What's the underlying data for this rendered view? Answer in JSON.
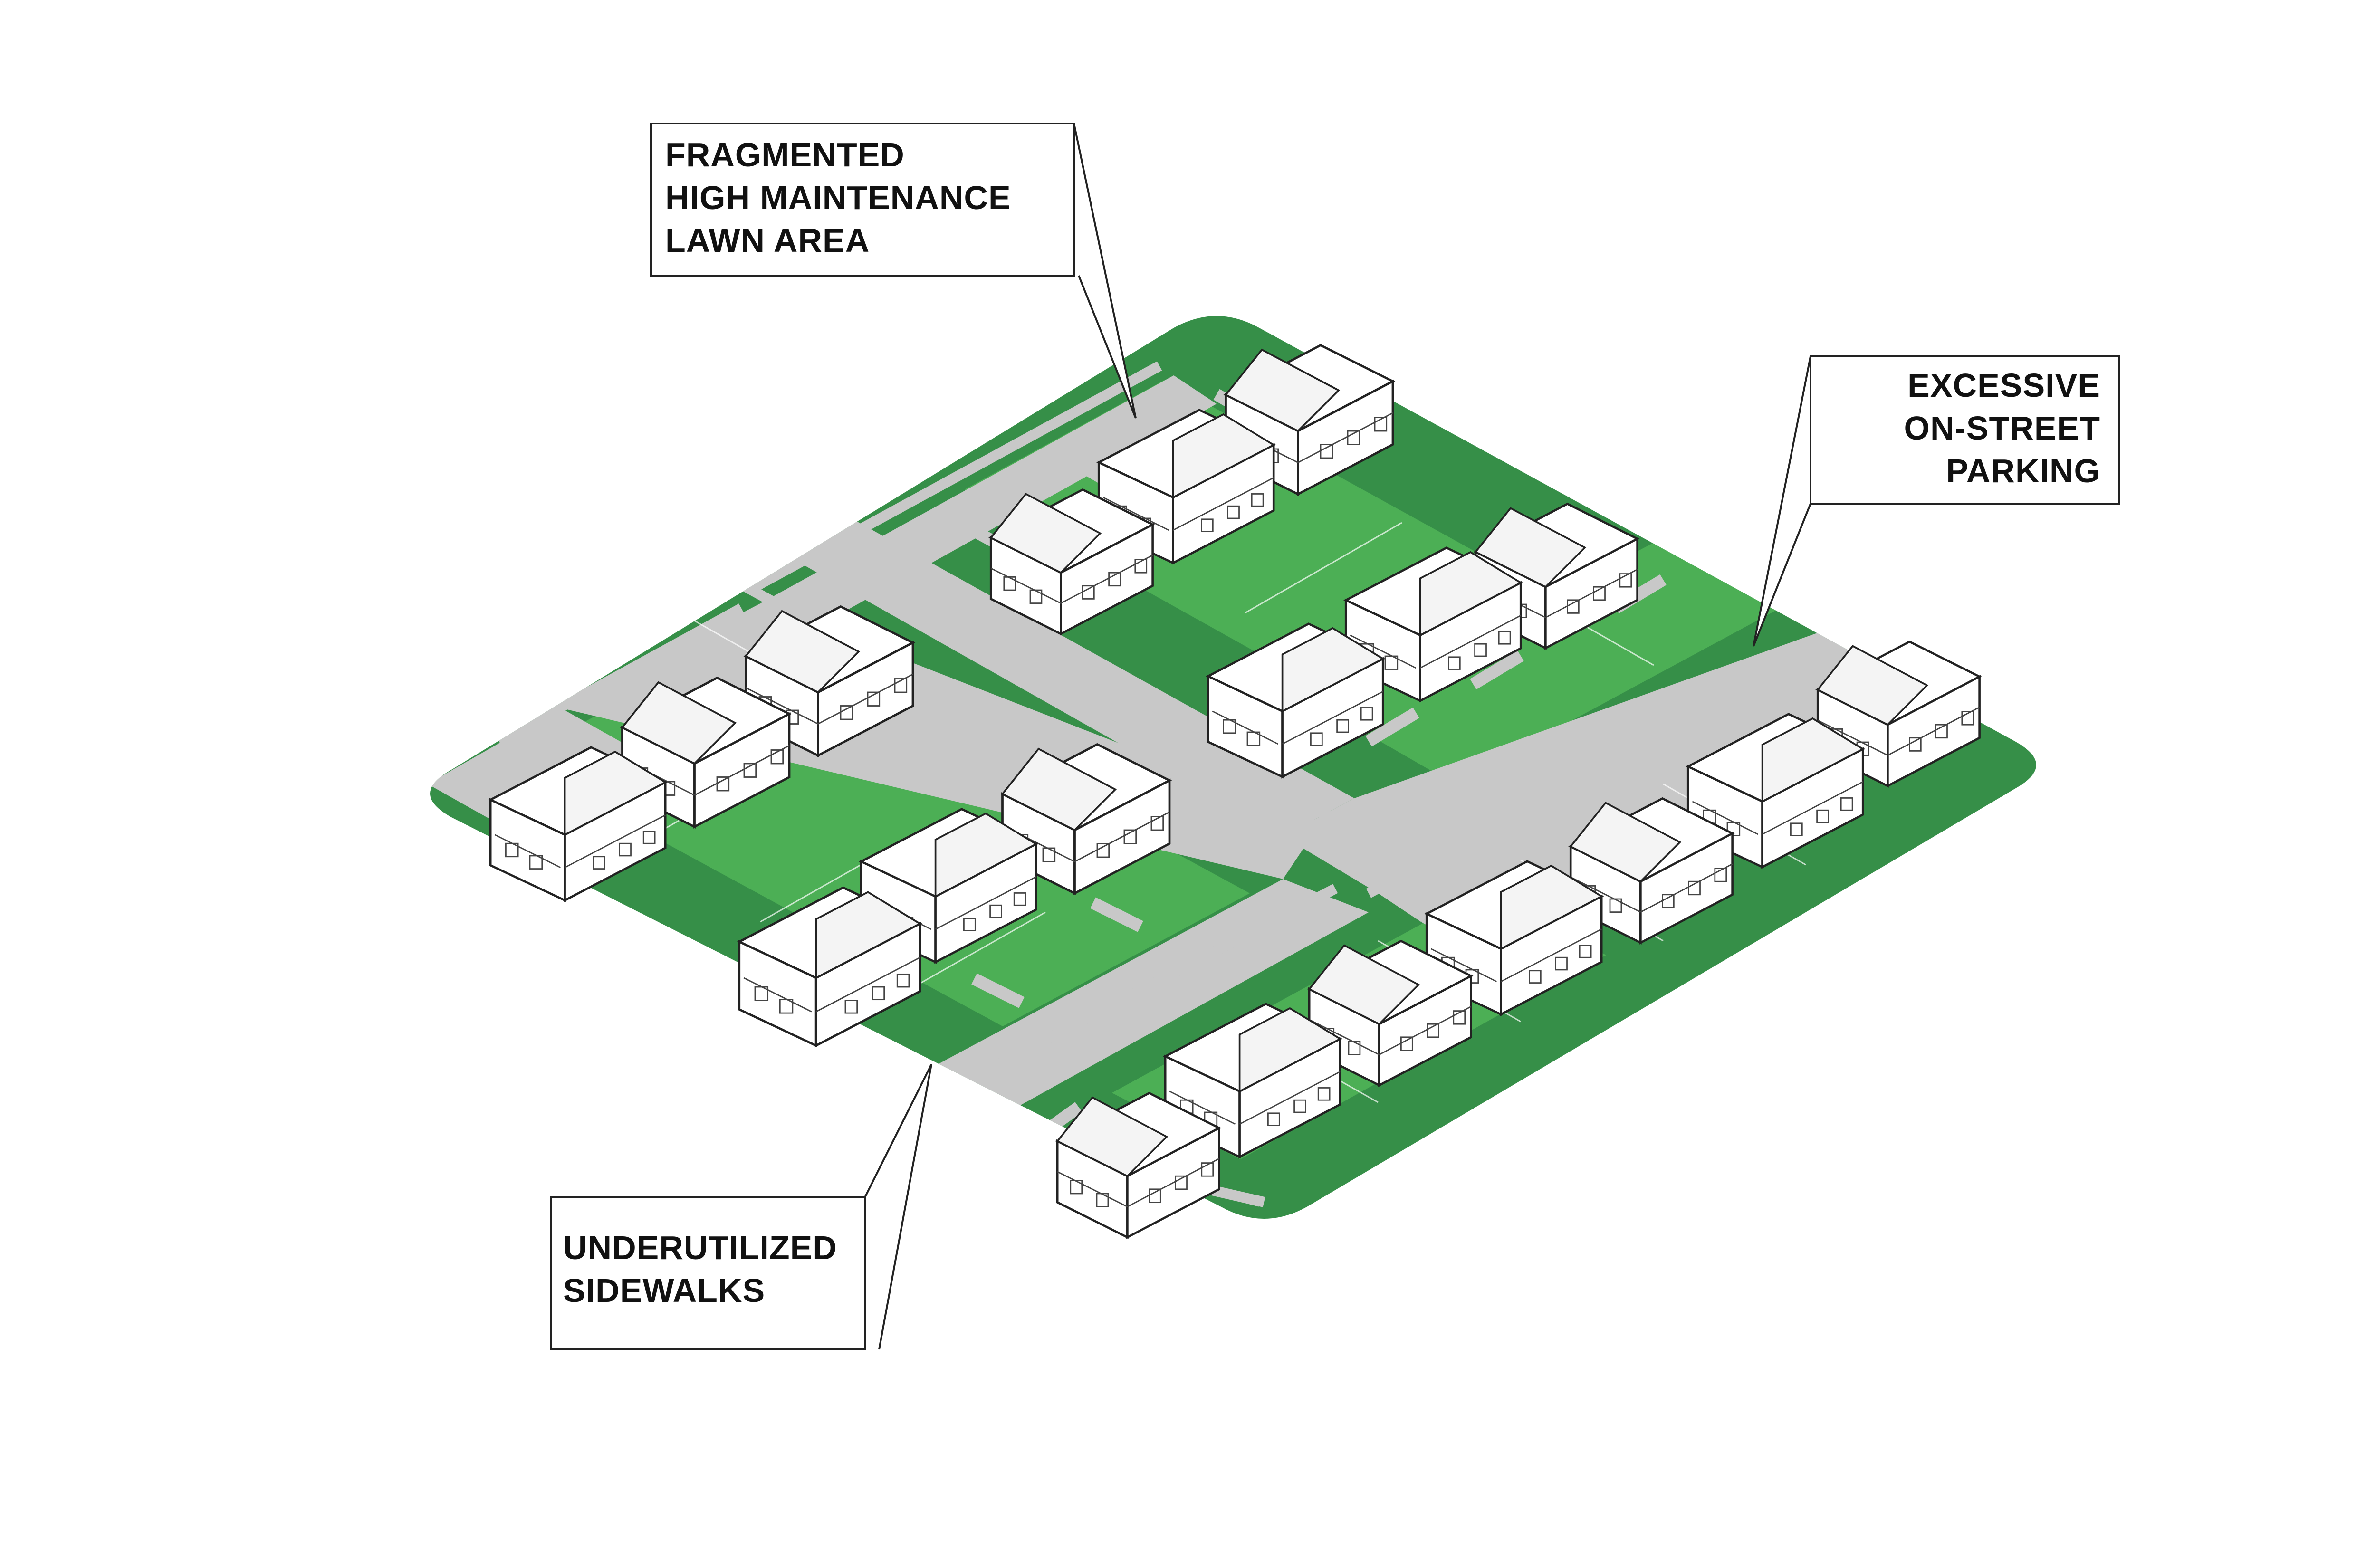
{
  "callouts": {
    "lawn": {
      "lines": [
        "FRAGMENTED",
        "HIGH MAINTENANCE",
        "LAWN AREA"
      ]
    },
    "parking": {
      "lines": [
        "EXCESSIVE",
        "ON-STREET",
        "PARKING"
      ]
    },
    "sidewalks": {
      "lines": [
        "UNDERUTILIZED",
        "SIDEWALKS"
      ]
    }
  },
  "colors": {
    "lawn_dark": "#368f48",
    "lawn_light": "#4caf55",
    "pavement": "#c8c8c8",
    "house_fill": "#ffffff",
    "outline": "#222222"
  }
}
